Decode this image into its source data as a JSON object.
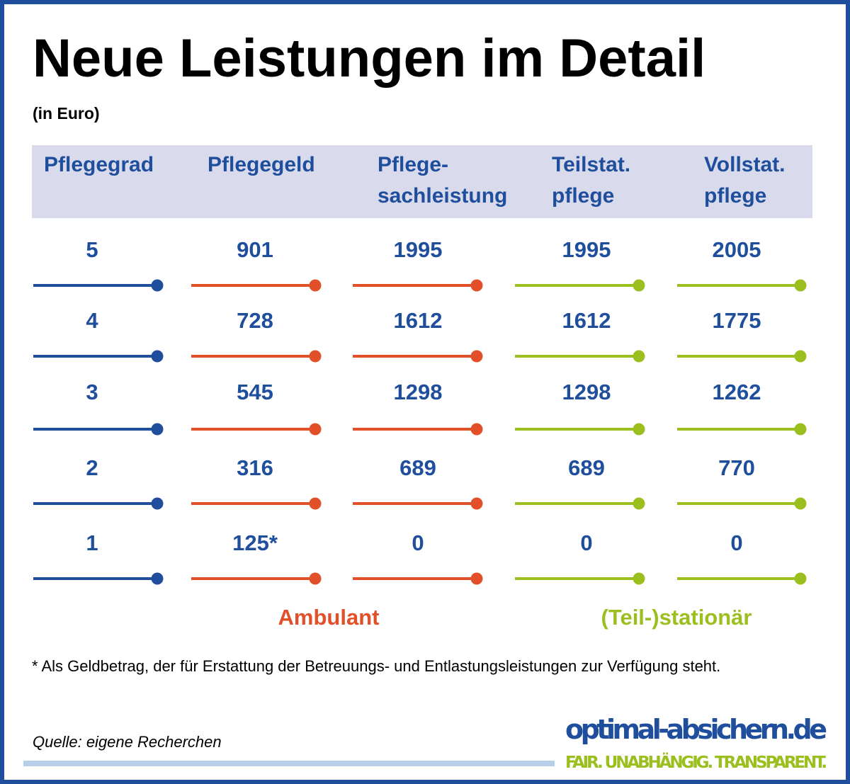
{
  "header": {
    "title": "Neue Leistungen im Detail",
    "subtitle": "(in Euro)"
  },
  "table": {
    "columns": [
      [
        "Pflegegrad"
      ],
      [
        "Pflegegeld"
      ],
      [
        "Pflege-",
        "sachleistung"
      ],
      [
        "Teilstat.",
        "pflege"
      ],
      [
        "Vollstat.",
        "pflege"
      ]
    ],
    "rows": [
      [
        "5",
        "901",
        "1995",
        "1995",
        "2005"
      ],
      [
        "4",
        "728",
        "1612",
        "1612",
        "1775"
      ],
      [
        "3",
        "545",
        "1298",
        "1298",
        "1262"
      ],
      [
        "2",
        "316",
        "689",
        "689",
        "770"
      ],
      [
        "1",
        "125*",
        "0",
        "0",
        "0"
      ]
    ],
    "groups": [
      "Ambulant",
      "(Teil-)stationär"
    ]
  },
  "footnote": "* Als Geldbetrag, der für Erstattung der Betreuungs- und Entlastungsleistungen zur Verfügung steht.",
  "source": "Quelle: eigene Recherchen",
  "brand": {
    "name": "optimal-absichern.de",
    "tagline": "FAIR. UNABHÄNGIG. TRANSPARENT."
  }
}
